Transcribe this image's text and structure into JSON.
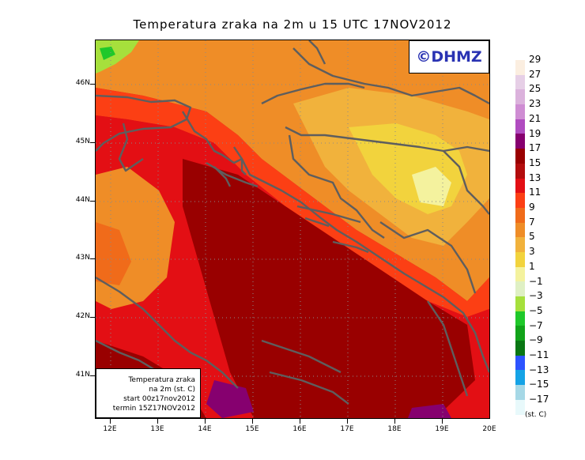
{
  "title": "Temperatura zraka na 2m u 15 UTC 17NOV2012",
  "logo_text": "©DHMZ",
  "info": {
    "line1": "Temperatura zraka",
    "line2": "na 2m (st. C)",
    "line3": "start 00z17nov2012",
    "line4": "termin 15Z17NOV2012"
  },
  "lat_labels": [
    "46N",
    "45N",
    "44N",
    "43N",
    "42N",
    "41N"
  ],
  "lon_labels": [
    "12E",
    "13E",
    "14E",
    "15E",
    "16E",
    "17E",
    "18E",
    "19E",
    "20E"
  ],
  "legend": {
    "labels": [
      "29",
      "27",
      "25",
      "23",
      "21",
      "19",
      "17",
      "15",
      "13",
      "11",
      "9",
      "7",
      "5",
      "3",
      "1",
      "−1",
      "−3",
      "−5",
      "−7",
      "−9",
      "−11",
      "−13",
      "−15",
      "−17"
    ],
    "colors": [
      "#fbeee0",
      "#e6cfe6",
      "#dbb2dc",
      "#cf8dd3",
      "#b04cc0",
      "#86006f",
      "#990000",
      "#b30d0d",
      "#e30f14",
      "#fc3f14",
      "#f06b1a",
      "#ef8d27",
      "#f1b23c",
      "#f2d33d",
      "#f4f29e",
      "#dff0c4",
      "#a6e03c",
      "#1fc82a",
      "#12a31a",
      "#0a7714",
      "#2c53ff",
      "#15a3e6",
      "#a6d8e6",
      "#e8f9fb"
    ],
    "unit": "(st. C)"
  },
  "colors": {
    "coast": "#5e5e5e",
    "logo_text": "#2a33b3"
  }
}
